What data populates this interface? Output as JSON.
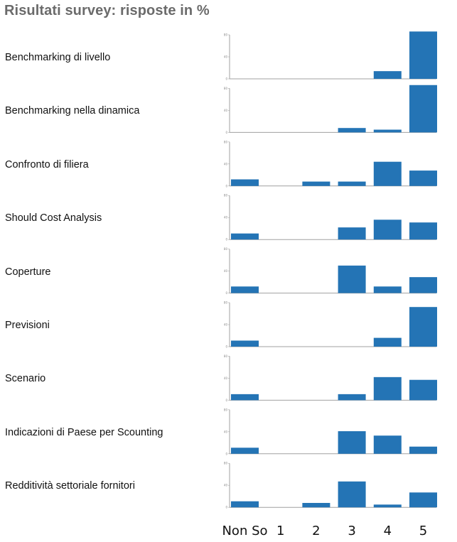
{
  "title": "Risultati survey: risposte in %",
  "chart_data": {
    "type": "bar",
    "title": "Risultati survey: risposte in %",
    "categories": [
      "Non So",
      "1",
      "2",
      "3",
      "4",
      "5"
    ],
    "ylim": [
      0,
      80
    ],
    "yticks": [
      0,
      40,
      80
    ],
    "colors": {
      "bar": "#2474b5",
      "axis": "#a0a0a0"
    },
    "panels": [
      {
        "label": "Benchmarking di livello",
        "values": [
          0,
          0,
          0,
          0,
          14,
          86
        ]
      },
      {
        "label": "Benchmarking nella dinamica",
        "values": [
          0,
          0,
          0,
          8,
          5,
          86
        ]
      },
      {
        "label": "Confronto di filiera",
        "values": [
          12,
          0,
          8,
          8,
          44,
          28
        ]
      },
      {
        "label": "Should Cost Analysis",
        "values": [
          11,
          0,
          0,
          22,
          36,
          31
        ]
      },
      {
        "label": "Coperture",
        "values": [
          12,
          0,
          0,
          50,
          12,
          29
        ]
      },
      {
        "label": "Previsioni",
        "values": [
          11,
          0,
          0,
          0,
          16,
          72
        ]
      },
      {
        "label": "Scenario",
        "values": [
          11,
          0,
          0,
          11,
          42,
          37
        ]
      },
      {
        "label": "Indicazioni di Paese per Scounting",
        "values": [
          11,
          0,
          0,
          41,
          33,
          13
        ]
      },
      {
        "label": "Redditività settoriale fornitori",
        "values": [
          11,
          0,
          8,
          47,
          5,
          27
        ]
      }
    ]
  }
}
